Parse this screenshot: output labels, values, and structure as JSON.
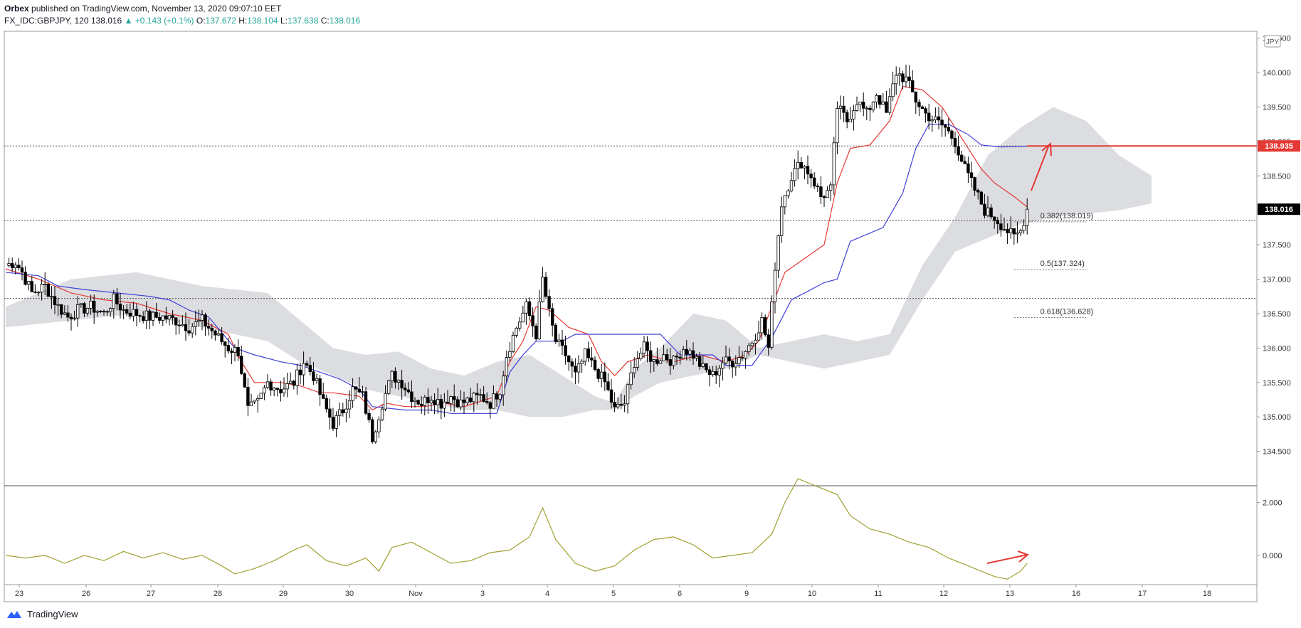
{
  "header": {
    "publisher": "Orbex",
    "published_text": "published on TradingView.com, November 13, 2020 09:07:10 EET",
    "symbol": "FX_IDC:GBPJPY, 120",
    "last_price": "138.016",
    "change": "▲ +0.143 (+0.1%)",
    "open_label": "O:",
    "open_value": "137.672",
    "high_label": "H:",
    "high_value": "138.104",
    "low_label": "L:",
    "low_value": "137.638",
    "close_label": "C:",
    "close_value": "138.016"
  },
  "footer": {
    "brand": "TradingView"
  },
  "colors": {
    "tenkan": "#e53935",
    "kijun": "#3f3fd8",
    "cloud": "#d6d7db",
    "oscillator": "#a0a030",
    "arrow": "#e53935",
    "resistance_badge": "#e53935",
    "price_badge": "#000000"
  },
  "chart_data": {
    "type": "candlestick",
    "symbol": "FX_IDC:GBPJPY",
    "interval": "120",
    "currency_label": "JPY",
    "x_ticks": [
      "23",
      "26",
      "27",
      "28",
      "29",
      "30",
      "Nov",
      "3",
      "4",
      "5",
      "6",
      "9",
      "10",
      "11",
      "12",
      "13",
      "16",
      "17",
      "18"
    ],
    "price_axis": {
      "ylim": [
        134.0,
        140.6
      ],
      "ticks": [
        "134.000",
        "134.500",
        "135.000",
        "135.500",
        "136.000",
        "136.500",
        "137.000",
        "137.500",
        "138.000",
        "138.500",
        "139.000",
        "139.500",
        "140.000",
        "140.500"
      ]
    },
    "indicator_axis": {
      "ylim": [
        -1.0,
        2.5
      ],
      "ticks": [
        "2.000",
        "0.000"
      ]
    },
    "horizontal_lines": [
      138.935,
      137.85,
      136.72
    ],
    "price_badges": [
      {
        "label": "138.935",
        "value": 138.935,
        "kind": "resistance"
      },
      {
        "label": "138.016",
        "value": 138.016,
        "kind": "last"
      }
    ],
    "fib_levels": [
      {
        "label": "0.382(138.019)",
        "value": 138.019
      },
      {
        "label": "0.5(137.324)",
        "value": 137.324
      },
      {
        "label": "0.618(136.628)",
        "value": 136.628
      }
    ],
    "close_path": [
      [
        0,
        137.2
      ],
      [
        3,
        137.25
      ],
      [
        5,
        137.1
      ],
      [
        8,
        136.8
      ],
      [
        12,
        136.9
      ],
      [
        16,
        136.6
      ],
      [
        19,
        136.45
      ],
      [
        22,
        136.55
      ],
      [
        26,
        136.6
      ],
      [
        30,
        136.5
      ],
      [
        33,
        136.7
      ],
      [
        36,
        136.55
      ],
      [
        40,
        136.5
      ],
      [
        44,
        136.45
      ],
      [
        48,
        136.45
      ],
      [
        52,
        136.4
      ],
      [
        56,
        136.3
      ],
      [
        60,
        136.4
      ],
      [
        64,
        136.2
      ],
      [
        68,
        136.0
      ],
      [
        71,
        135.95
      ],
      [
        74,
        135.1
      ],
      [
        77,
        135.2
      ],
      [
        80,
        135.5
      ],
      [
        84,
        135.4
      ],
      [
        88,
        135.5
      ],
      [
        91,
        135.8
      ],
      [
        94,
        135.6
      ],
      [
        97,
        135.2
      ],
      [
        100,
        134.9
      ],
      [
        103,
        135.1
      ],
      [
        106,
        135.4
      ],
      [
        109,
        135.3
      ],
      [
        112,
        134.7
      ],
      [
        115,
        135.2
      ],
      [
        118,
        135.6
      ],
      [
        121,
        135.5
      ],
      [
        124,
        135.3
      ],
      [
        127,
        135.2
      ],
      [
        130,
        135.3
      ],
      [
        133,
        135.2
      ],
      [
        136,
        135.3
      ],
      [
        139,
        135.2
      ],
      [
        142,
        135.25
      ],
      [
        145,
        135.3
      ],
      [
        148,
        135.2
      ],
      [
        151,
        135.4
      ],
      [
        153,
        135.9
      ],
      [
        156,
        136.3
      ],
      [
        159,
        136.6
      ],
      [
        162,
        136.2
      ],
      [
        164,
        137.0
      ],
      [
        166,
        136.5
      ],
      [
        168,
        136.1
      ],
      [
        171,
        135.9
      ],
      [
        174,
        135.6
      ],
      [
        177,
        135.9
      ],
      [
        180,
        135.7
      ],
      [
        183,
        135.5
      ],
      [
        186,
        135.1
      ],
      [
        189,
        135.2
      ],
      [
        192,
        135.8
      ],
      [
        195,
        136.0
      ],
      [
        198,
        135.8
      ],
      [
        201,
        135.9
      ],
      [
        204,
        135.8
      ],
      [
        207,
        136.0
      ],
      [
        210,
        135.9
      ],
      [
        213,
        135.7
      ],
      [
        216,
        135.6
      ],
      [
        219,
        135.8
      ],
      [
        222,
        135.8
      ],
      [
        225,
        135.9
      ],
      [
        228,
        136.1
      ],
      [
        231,
        136.4
      ],
      [
        233,
        136.0
      ],
      [
        235,
        137.2
      ],
      [
        237,
        138.1
      ],
      [
        240,
        138.5
      ],
      [
        243,
        138.7
      ],
      [
        246,
        138.5
      ],
      [
        249,
        138.2
      ],
      [
        252,
        138.3
      ],
      [
        254,
        139.5
      ],
      [
        257,
        139.3
      ],
      [
        260,
        139.6
      ],
      [
        263,
        139.4
      ],
      [
        266,
        139.7
      ],
      [
        269,
        139.4
      ],
      [
        272,
        140.0
      ],
      [
        275,
        139.9
      ],
      [
        278,
        139.6
      ],
      [
        281,
        139.4
      ],
      [
        284,
        139.3
      ],
      [
        287,
        139.2
      ],
      [
        290,
        139.0
      ],
      [
        293,
        138.6
      ],
      [
        296,
        138.3
      ],
      [
        299,
        138.0
      ],
      [
        302,
        137.9
      ],
      [
        305,
        137.75
      ],
      [
        308,
        137.6
      ],
      [
        310,
        137.7
      ],
      [
        312,
        138.016
      ]
    ],
    "series": [
      {
        "name": "tenkan",
        "points": [
          [
            0,
            137.15
          ],
          [
            10,
            137.0
          ],
          [
            20,
            136.8
          ],
          [
            30,
            136.7
          ],
          [
            40,
            136.65
          ],
          [
            50,
            136.5
          ],
          [
            60,
            136.4
          ],
          [
            68,
            136.2
          ],
          [
            72,
            135.8
          ],
          [
            76,
            135.5
          ],
          [
            84,
            135.5
          ],
          [
            90,
            135.45
          ],
          [
            96,
            135.35
          ],
          [
            100,
            135.35
          ],
          [
            108,
            135.3
          ],
          [
            112,
            135.1
          ],
          [
            116,
            135.2
          ],
          [
            122,
            135.15
          ],
          [
            128,
            135.15
          ],
          [
            134,
            135.2
          ],
          [
            140,
            135.15
          ],
          [
            150,
            135.3
          ],
          [
            154,
            135.8
          ],
          [
            158,
            136.1
          ],
          [
            162,
            136.6
          ],
          [
            166,
            136.55
          ],
          [
            172,
            136.3
          ],
          [
            178,
            136.2
          ],
          [
            182,
            135.8
          ],
          [
            186,
            135.6
          ],
          [
            190,
            135.8
          ],
          [
            196,
            135.9
          ],
          [
            204,
            135.8
          ],
          [
            212,
            135.9
          ],
          [
            220,
            135.8
          ],
          [
            226,
            135.9
          ],
          [
            230,
            136.1
          ],
          [
            234,
            136.6
          ],
          [
            238,
            137.1
          ],
          [
            244,
            137.3
          ],
          [
            250,
            137.5
          ],
          [
            254,
            138.4
          ],
          [
            258,
            138.9
          ],
          [
            264,
            138.95
          ],
          [
            270,
            139.3
          ],
          [
            274,
            139.8
          ],
          [
            280,
            139.75
          ],
          [
            286,
            139.5
          ],
          [
            290,
            139.2
          ],
          [
            294,
            138.9
          ],
          [
            298,
            138.6
          ],
          [
            302,
            138.4
          ],
          [
            308,
            138.2
          ],
          [
            312,
            138.05
          ]
        ]
      },
      {
        "name": "kijun",
        "points": [
          [
            0,
            137.1
          ],
          [
            10,
            137.05
          ],
          [
            16,
            136.9
          ],
          [
            24,
            136.85
          ],
          [
            34,
            136.8
          ],
          [
            44,
            136.75
          ],
          [
            50,
            136.7
          ],
          [
            56,
            136.55
          ],
          [
            62,
            136.45
          ],
          [
            70,
            136.0
          ],
          [
            76,
            135.9
          ],
          [
            84,
            135.8
          ],
          [
            90,
            135.75
          ],
          [
            96,
            135.65
          ],
          [
            102,
            135.55
          ],
          [
            108,
            135.4
          ],
          [
            112,
            135.15
          ],
          [
            122,
            135.1
          ],
          [
            130,
            135.1
          ],
          [
            136,
            135.05
          ],
          [
            150,
            135.05
          ],
          [
            154,
            135.65
          ],
          [
            158,
            135.9
          ],
          [
            162,
            136.1
          ],
          [
            170,
            136.1
          ],
          [
            174,
            136.2
          ],
          [
            200,
            136.2
          ],
          [
            206,
            135.9
          ],
          [
            216,
            135.9
          ],
          [
            220,
            135.75
          ],
          [
            228,
            135.75
          ],
          [
            234,
            136.15
          ],
          [
            240,
            136.7
          ],
          [
            250,
            136.95
          ],
          [
            254,
            137.0
          ],
          [
            258,
            137.55
          ],
          [
            268,
            137.75
          ],
          [
            274,
            138.25
          ],
          [
            278,
            138.9
          ],
          [
            282,
            139.25
          ],
          [
            288,
            139.25
          ],
          [
            294,
            139.1
          ],
          [
            298,
            138.95
          ],
          [
            304,
            138.92
          ],
          [
            312,
            138.93
          ]
        ]
      }
    ],
    "cloud": {
      "upper": [
        [
          0,
          136.6
        ],
        [
          20,
          137.0
        ],
        [
          40,
          137.1
        ],
        [
          60,
          136.9
        ],
        [
          80,
          136.8
        ],
        [
          90,
          136.4
        ],
        [
          100,
          136.0
        ],
        [
          110,
          135.9
        ],
        [
          120,
          135.95
        ],
        [
          130,
          135.7
        ],
        [
          140,
          135.6
        ],
        [
          150,
          135.8
        ],
        [
          160,
          135.9
        ],
        [
          170,
          135.6
        ],
        [
          180,
          135.3
        ],
        [
          186,
          135.2
        ],
        [
          192,
          135.7
        ],
        [
          200,
          136.0
        ],
        [
          210,
          136.5
        ],
        [
          220,
          136.4
        ],
        [
          230,
          136.0
        ],
        [
          240,
          136.1
        ],
        [
          250,
          136.2
        ],
        [
          260,
          136.1
        ],
        [
          270,
          136.2
        ],
        [
          280,
          137.2
        ],
        [
          290,
          137.9
        ],
        [
          300,
          138.8
        ],
        [
          310,
          139.2
        ],
        [
          320,
          139.5
        ],
        [
          330,
          139.3
        ],
        [
          340,
          138.8
        ],
        [
          350,
          138.5
        ]
      ],
      "lower": [
        [
          0,
          136.3
        ],
        [
          20,
          136.4
        ],
        [
          40,
          136.5
        ],
        [
          60,
          136.3
        ],
        [
          80,
          136.1
        ],
        [
          90,
          135.8
        ],
        [
          100,
          135.6
        ],
        [
          110,
          135.4
        ],
        [
          120,
          135.3
        ],
        [
          130,
          135.2
        ],
        [
          140,
          135.1
        ],
        [
          150,
          135.1
        ],
        [
          160,
          135.0
        ],
        [
          170,
          135.0
        ],
        [
          180,
          135.1
        ],
        [
          186,
          135.1
        ],
        [
          192,
          135.3
        ],
        [
          200,
          135.5
        ],
        [
          210,
          135.6
        ],
        [
          220,
          135.7
        ],
        [
          230,
          135.9
        ],
        [
          240,
          135.8
        ],
        [
          250,
          135.7
        ],
        [
          260,
          135.8
        ],
        [
          270,
          135.9
        ],
        [
          280,
          136.7
        ],
        [
          290,
          137.4
        ],
        [
          300,
          137.6
        ],
        [
          310,
          137.8
        ],
        [
          320,
          137.9
        ],
        [
          330,
          137.95
        ],
        [
          340,
          138.0
        ],
        [
          350,
          138.1
        ]
      ]
    },
    "oscillator": {
      "points": [
        [
          0,
          0.0
        ],
        [
          6,
          -0.1
        ],
        [
          12,
          0.0
        ],
        [
          18,
          -0.3
        ],
        [
          24,
          0.0
        ],
        [
          30,
          -0.2
        ],
        [
          36,
          0.15
        ],
        [
          42,
          -0.1
        ],
        [
          48,
          0.1
        ],
        [
          54,
          -0.15
        ],
        [
          60,
          0.0
        ],
        [
          66,
          -0.4
        ],
        [
          70,
          -0.7
        ],
        [
          76,
          -0.5
        ],
        [
          82,
          -0.2
        ],
        [
          88,
          0.2
        ],
        [
          92,
          0.4
        ],
        [
          98,
          -0.2
        ],
        [
          104,
          -0.4
        ],
        [
          110,
          -0.1
        ],
        [
          114,
          -0.6
        ],
        [
          118,
          0.3
        ],
        [
          124,
          0.5
        ],
        [
          130,
          0.1
        ],
        [
          136,
          -0.3
        ],
        [
          142,
          -0.2
        ],
        [
          148,
          0.1
        ],
        [
          154,
          0.2
        ],
        [
          160,
          0.7
        ],
        [
          164,
          1.8
        ],
        [
          168,
          0.6
        ],
        [
          174,
          -0.3
        ],
        [
          180,
          -0.6
        ],
        [
          186,
          -0.4
        ],
        [
          192,
          0.2
        ],
        [
          198,
          0.6
        ],
        [
          204,
          0.7
        ],
        [
          210,
          0.4
        ],
        [
          216,
          -0.1
        ],
        [
          222,
          0.0
        ],
        [
          228,
          0.1
        ],
        [
          234,
          0.8
        ],
        [
          238,
          2.0
        ],
        [
          242,
          2.9
        ],
        [
          248,
          2.6
        ],
        [
          254,
          2.3
        ],
        [
          258,
          1.5
        ],
        [
          264,
          1.0
        ],
        [
          270,
          0.8
        ],
        [
          276,
          0.5
        ],
        [
          282,
          0.3
        ],
        [
          288,
          -0.1
        ],
        [
          294,
          -0.4
        ],
        [
          298,
          -0.6
        ],
        [
          302,
          -0.8
        ],
        [
          306,
          -0.9
        ],
        [
          310,
          -0.6
        ],
        [
          312,
          -0.3
        ]
      ]
    }
  }
}
